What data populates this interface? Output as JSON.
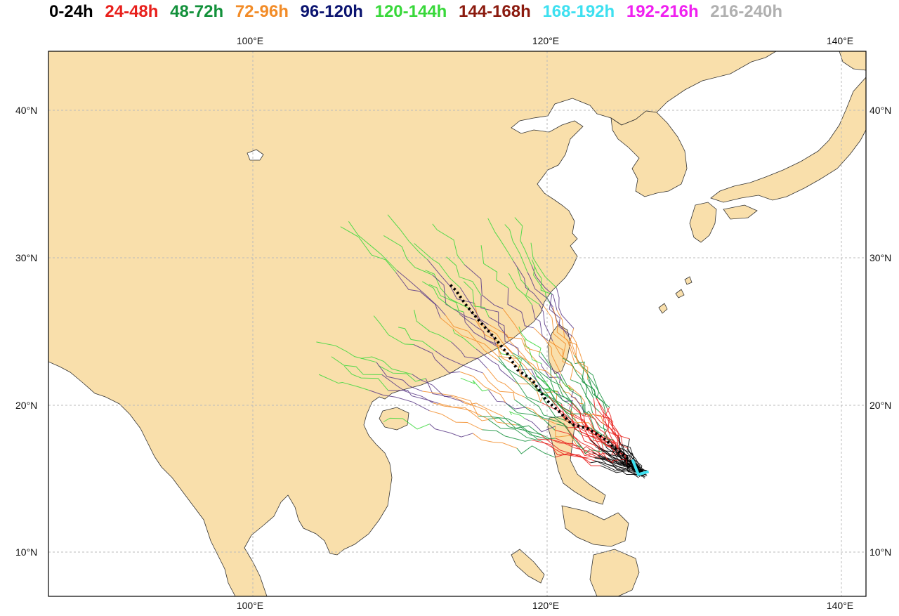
{
  "legend": {
    "items": [
      {
        "label": "0-24h",
        "color": "#000000"
      },
      {
        "label": "24-48h",
        "color": "#e8201c"
      },
      {
        "label": "48-72h",
        "color": "#13913b"
      },
      {
        "label": "72-96h",
        "color": "#f28c28"
      },
      {
        "label": "96-120h",
        "color": "#0b1470"
      },
      {
        "label": "120-144h",
        "color": "#38d83a"
      },
      {
        "label": "144-168h",
        "color": "#8b1a0e"
      },
      {
        "label": "168-192h",
        "color": "#3ee0f0"
      },
      {
        "label": "192-216h",
        "color": "#f020f0"
      },
      {
        "label": "216-240h",
        "color": "#b0b0b0"
      }
    ]
  },
  "axes": {
    "lon_labels": [
      "100°E",
      "120°E",
      "140°E"
    ],
    "lat_labels": [
      "40°N",
      "30°N",
      "20°N",
      "10°N"
    ]
  },
  "colors": {
    "land": "#f9dfab",
    "ocean": "#ffffff",
    "coast": "#333333",
    "grid": "#bbbbbb",
    "mean_track": "#000000",
    "genesis_marker": "#3ee0f0"
  },
  "mean_track": [
    [
      126.5,
      15.5
    ],
    [
      125.7,
      16.2
    ],
    [
      124.8,
      16.9
    ],
    [
      123.8,
      17.8
    ],
    [
      122.8,
      18.4
    ],
    [
      121.7,
      18.7
    ],
    [
      120.9,
      19.5
    ],
    [
      119.9,
      20.4
    ],
    [
      119.0,
      21.7
    ],
    [
      118.0,
      22.4
    ],
    [
      117.3,
      23.5
    ],
    [
      116.5,
      24.5
    ],
    [
      115.5,
      25.6
    ],
    [
      114.5,
      26.8
    ],
    [
      113.8,
      27.8
    ],
    [
      113.3,
      28.3
    ]
  ]
}
